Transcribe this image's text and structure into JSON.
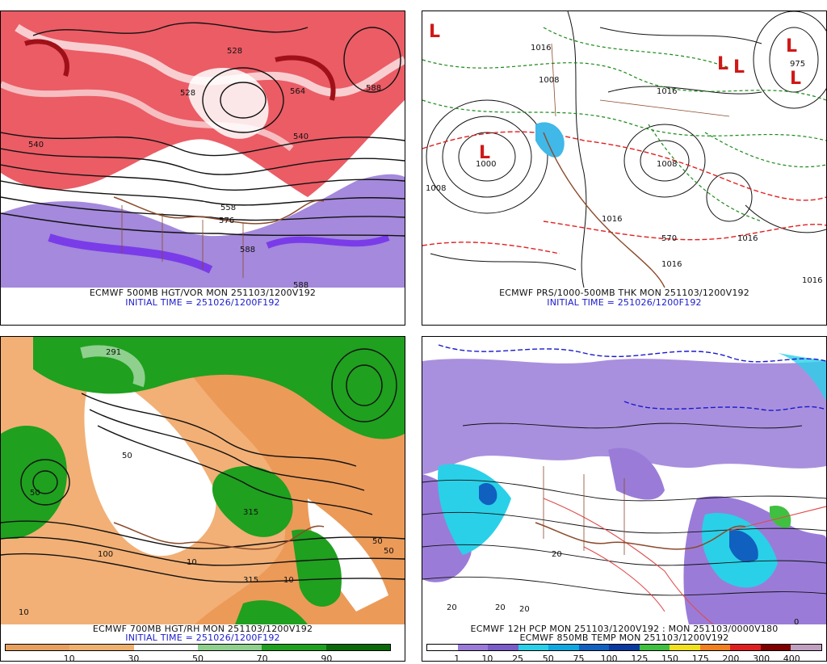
{
  "panels": {
    "top_left": {
      "caption_line1": "ECMWF 500MB HGT/VOR MON 251103/1200V192",
      "caption_line2": "INITIAL TIME = 251026/1200F192",
      "labels": [
        "540",
        "528",
        "528",
        "540",
        "558",
        "576",
        "588",
        "588",
        "588",
        "564"
      ]
    },
    "top_right": {
      "caption_line1": "ECMWF PRS/1000-500MB THK MON 251103/1200V192",
      "caption_line2": "INITIAL TIME = 251026/1200F192",
      "labels": [
        "1008",
        "1016",
        "1008",
        "1000",
        "1016",
        "1008",
        "1016",
        "1016",
        "1016",
        "1016",
        "570",
        "975"
      ],
      "lows": [
        "L",
        "L",
        "L",
        "L",
        "L",
        "L"
      ]
    },
    "bottom_left": {
      "caption_line1": "ECMWF 700MB HGT/RH MON 251103/1200V192",
      "caption_line2": "INITIAL TIME = 251026/1200F192",
      "labels": [
        "291",
        "50",
        "50",
        "315",
        "10",
        "100",
        "50",
        "50",
        "10",
        "315",
        "10"
      ],
      "legend_ticks": [
        "10",
        "30",
        "50",
        "70",
        "90"
      ]
    },
    "bottom_right": {
      "caption_line1": "ECMWF 12H PCP MON 251103/1200V192 : MON 251103/0000V180",
      "caption_line2": "ECMWF 850MB TEMP MON 251103/1200V192",
      "labels": [
        "20",
        "20",
        "0",
        "20",
        "20"
      ],
      "legend_ticks": [
        "1",
        "10",
        "25",
        "50",
        "75",
        "100",
        "125",
        "150",
        "175",
        "200",
        "300",
        "400"
      ]
    }
  },
  "colors": {
    "rh_scale": [
      "#e8a060",
      "#f0b070",
      "#ffffff",
      "#8fd08f",
      "#1fa01f",
      "#0a6a0a"
    ],
    "pcp_scale": [
      "#ffffff",
      "#9a7cd8",
      "#7a5cc8",
      "#2ad0e8",
      "#10a8e0",
      "#1060c0",
      "#0a3aa0",
      "#40c040",
      "#f0e020",
      "#f08020",
      "#e02020",
      "#800000",
      "#c0a0c0"
    ]
  }
}
